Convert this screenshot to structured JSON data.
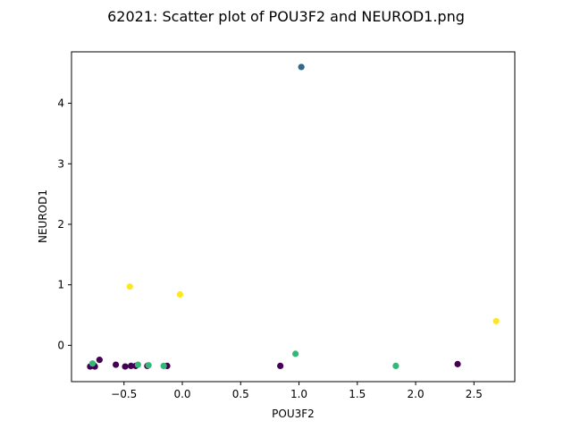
{
  "chart_data": {
    "type": "scatter",
    "title": "62021: Scatter plot of POU3F2 and NEUROD1.png",
    "xlabel": "POU3F2",
    "ylabel": "NEUROD1",
    "xlim": [
      -0.95,
      2.85
    ],
    "ylim": [
      -0.6,
      4.85
    ],
    "x_ticks": [
      {
        "value": -0.5,
        "label": "−0.5"
      },
      {
        "value": 0.0,
        "label": "0.0"
      },
      {
        "value": 0.5,
        "label": "0.5"
      },
      {
        "value": 1.0,
        "label": "1.0"
      },
      {
        "value": 1.5,
        "label": "1.5"
      },
      {
        "value": 2.0,
        "label": "2.0"
      },
      {
        "value": 2.5,
        "label": "2.5"
      }
    ],
    "y_ticks": [
      {
        "value": 0,
        "label": "0"
      },
      {
        "value": 1,
        "label": "1"
      },
      {
        "value": 2,
        "label": "2"
      },
      {
        "value": 3,
        "label": "3"
      },
      {
        "value": 4,
        "label": "4"
      }
    ],
    "grid": false,
    "colors": {
      "purple": "#440154",
      "blue": "#31688e",
      "green": "#35b779",
      "yellow": "#fde725"
    },
    "points": [
      {
        "x": -0.79,
        "y": -0.35,
        "color": "#440154"
      },
      {
        "x": -0.76,
        "y": -0.33,
        "color": "#440154"
      },
      {
        "x": -0.75,
        "y": -0.35,
        "color": "#440154"
      },
      {
        "x": -0.71,
        "y": -0.24,
        "color": "#440154"
      },
      {
        "x": -0.57,
        "y": -0.32,
        "color": "#440154"
      },
      {
        "x": -0.49,
        "y": -0.35,
        "color": "#440154"
      },
      {
        "x": -0.44,
        "y": -0.34,
        "color": "#440154"
      },
      {
        "x": -0.4,
        "y": -0.34,
        "color": "#440154"
      },
      {
        "x": -0.3,
        "y": -0.34,
        "color": "#440154"
      },
      {
        "x": -0.13,
        "y": -0.34,
        "color": "#440154"
      },
      {
        "x": 0.84,
        "y": -0.34,
        "color": "#440154"
      },
      {
        "x": 2.36,
        "y": -0.31,
        "color": "#440154"
      },
      {
        "x": 1.02,
        "y": 4.6,
        "color": "#31688e"
      },
      {
        "x": -0.77,
        "y": -0.3,
        "color": "#35b779"
      },
      {
        "x": -0.38,
        "y": -0.32,
        "color": "#35b779"
      },
      {
        "x": -0.29,
        "y": -0.33,
        "color": "#35b779"
      },
      {
        "x": -0.16,
        "y": -0.34,
        "color": "#35b779"
      },
      {
        "x": 0.97,
        "y": -0.14,
        "color": "#35b779"
      },
      {
        "x": 1.83,
        "y": -0.34,
        "color": "#35b779"
      },
      {
        "x": -0.45,
        "y": 0.97,
        "color": "#fde725"
      },
      {
        "x": -0.02,
        "y": 0.84,
        "color": "#fde725"
      },
      {
        "x": 2.69,
        "y": 0.4,
        "color": "#fde725"
      }
    ]
  }
}
